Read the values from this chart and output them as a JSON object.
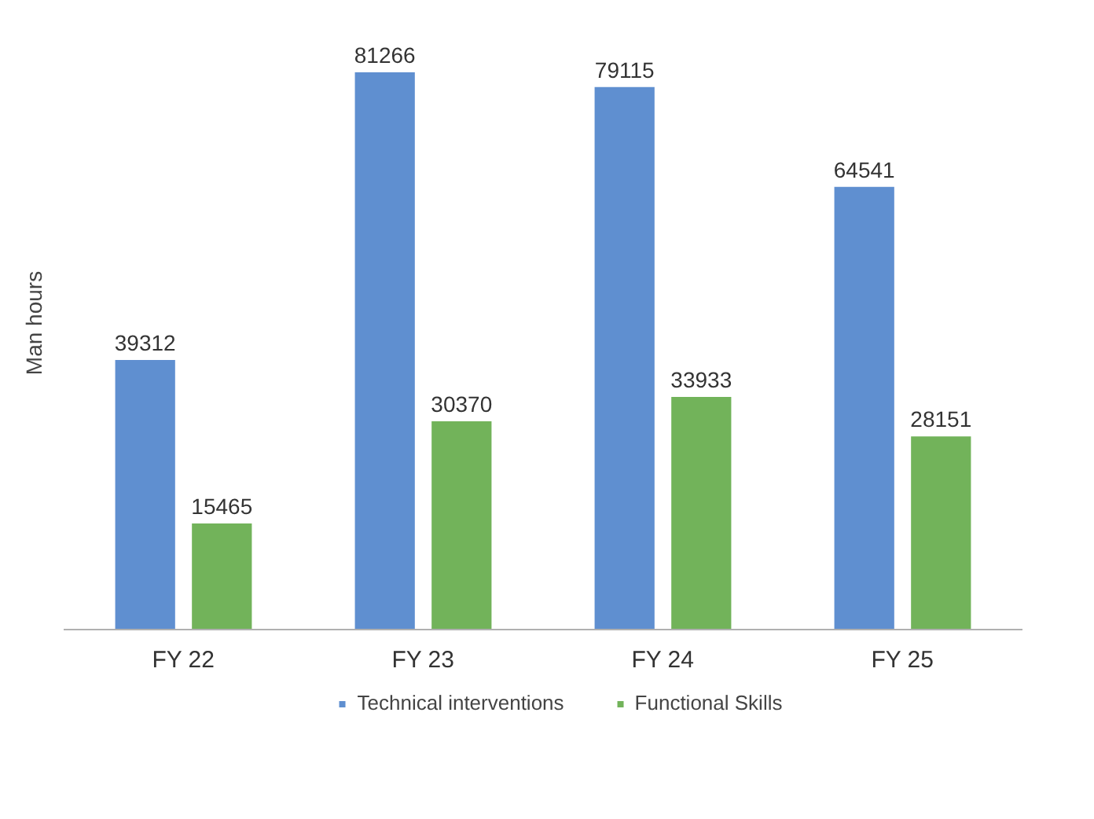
{
  "chart_data": {
    "type": "bar",
    "ylabel": "Man hours",
    "categories": [
      "FY 22",
      "FY 23",
      "FY 24",
      "FY 25"
    ],
    "series": [
      {
        "name": "Technical interventions",
        "color": "#5f8fd0",
        "values": [
          39312,
          81266,
          79115,
          64541
        ]
      },
      {
        "name": "Functional Skills",
        "color": "#72b35a",
        "values": [
          15465,
          30370,
          33933,
          28151
        ]
      }
    ],
    "data_labels": true,
    "legend": "bottom",
    "grid": false
  }
}
